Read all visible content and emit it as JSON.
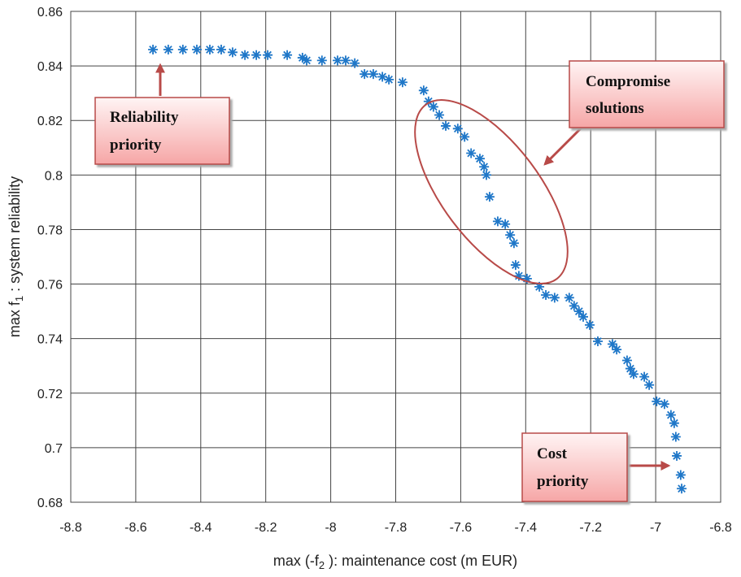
{
  "chart_data": {
    "type": "scatter",
    "x_label_parts": [
      "max (-f",
      "2",
      " ): maintenance cost (m EUR)"
    ],
    "y_label_parts": [
      "max f",
      "1",
      " : system reliability"
    ],
    "annotations": [
      [
        "Reliability",
        "priority"
      ],
      [
        "Compromise",
        "solutions"
      ],
      [
        "Cost",
        "priority"
      ]
    ],
    "xlim": [
      -8.8,
      -6.8
    ],
    "xticks": [
      -8.8,
      -8.6,
      -8.4,
      -8.2,
      -8,
      -7.8,
      -7.6,
      -7.4,
      -7.2,
      -7,
      -6.8
    ],
    "ylim": [
      0.68,
      0.86
    ],
    "yticks": [
      0.68,
      0.7,
      0.72,
      0.74,
      0.76,
      0.78,
      0.8,
      0.82,
      0.84,
      0.86
    ],
    "grid": true,
    "series": [
      {
        "color": "#1f77c8",
        "x": [
          -8.547,
          -8.5,
          -8.455,
          -8.412,
          -8.372,
          -8.337,
          -8.302,
          -8.264,
          -8.229,
          -8.194,
          -8.134,
          -8.087,
          -8.074,
          -8.027,
          -7.979,
          -7.954,
          -7.926,
          -7.896,
          -7.869,
          -7.841,
          -7.821,
          -7.779,
          -7.714,
          -7.699,
          -7.684,
          -7.666,
          -7.646,
          -7.609,
          -7.588,
          -7.568,
          -7.541,
          -7.528,
          -7.521,
          -7.511,
          -7.486,
          -7.463,
          -7.448,
          -7.436,
          -7.431,
          -7.421,
          -7.396,
          -7.358,
          -7.338,
          -7.311,
          -7.266,
          -7.251,
          -7.236,
          -7.223,
          -7.203,
          -7.178,
          -7.133,
          -7.12,
          -7.088,
          -7.078,
          -7.068,
          -7.035,
          -7.02,
          -6.997,
          -6.973,
          -6.953,
          -6.943,
          -6.938,
          -6.935,
          -6.923,
          -6.92
        ],
        "values": [
          0.846,
          0.846,
          0.846,
          0.846,
          0.846,
          0.846,
          0.845,
          0.844,
          0.844,
          0.844,
          0.844,
          0.843,
          0.842,
          0.842,
          0.842,
          0.842,
          0.841,
          0.837,
          0.837,
          0.836,
          0.835,
          0.834,
          0.831,
          0.827,
          0.825,
          0.822,
          0.818,
          0.817,
          0.814,
          0.808,
          0.806,
          0.803,
          0.8,
          0.792,
          0.783,
          0.782,
          0.778,
          0.775,
          0.767,
          0.763,
          0.762,
          0.759,
          0.756,
          0.755,
          0.755,
          0.752,
          0.75,
          0.748,
          0.745,
          0.739,
          0.738,
          0.736,
          0.732,
          0.729,
          0.727,
          0.726,
          0.723,
          0.717,
          0.716,
          0.712,
          0.709,
          0.704,
          0.697,
          0.69,
          0.685
        ]
      }
    ]
  }
}
